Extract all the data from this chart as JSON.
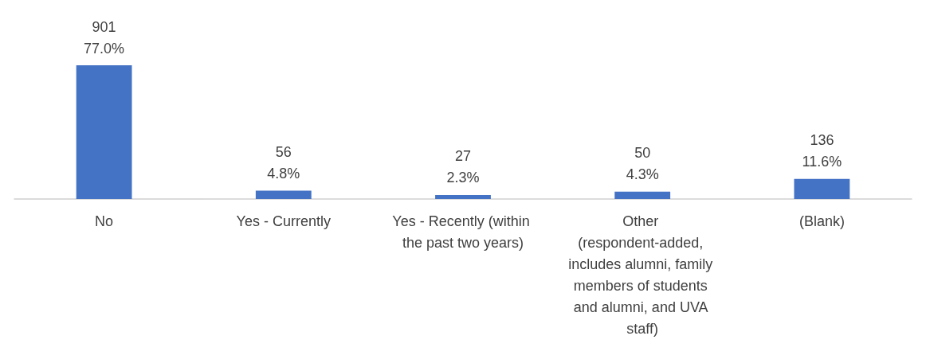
{
  "chart_data": {
    "type": "bar",
    "categories": [
      "No",
      "Yes - Currently",
      "Yes - Recently (within the past two years)",
      "Other (respondent-added, includes alumni, family members of students and alumni, and UVA staff)",
      "(Blank)"
    ],
    "values": [
      901,
      56,
      27,
      50,
      136
    ],
    "color": "#4472c4",
    "value_labels": [
      "901\n77.0%",
      "56\n4.8%",
      "27\n2.3%",
      "50\n4.3%",
      "136\n11.6%"
    ],
    "data_labels": false
  }
}
